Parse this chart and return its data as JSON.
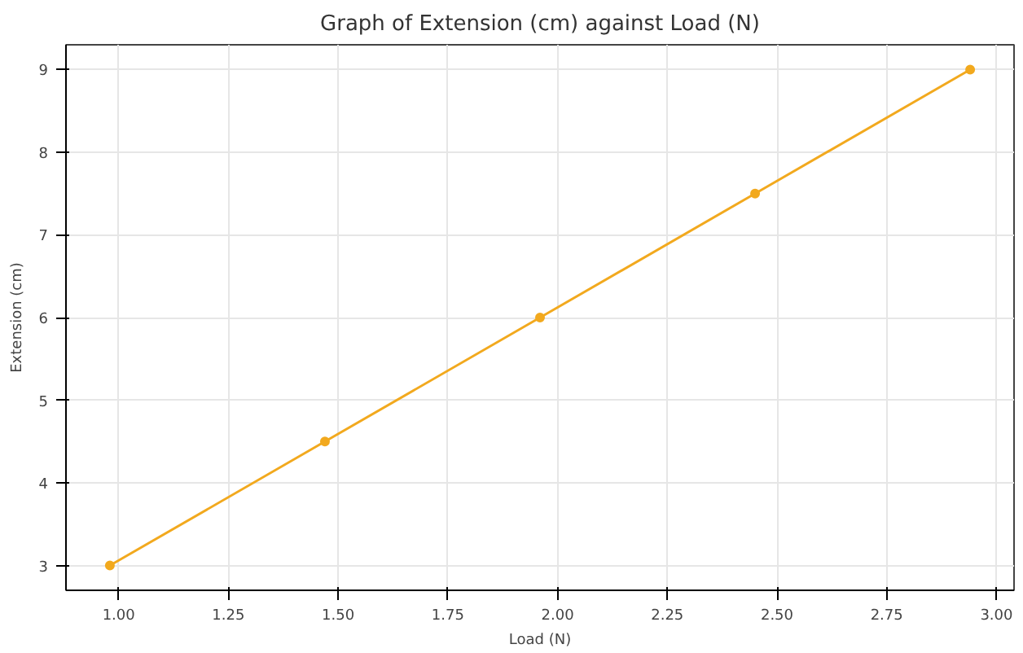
{
  "chart_data": {
    "type": "line",
    "title": "Graph of Extension (cm) against Load (N)",
    "xlabel": "Load (N)",
    "ylabel": "Extension (cm)",
    "x": [
      0.98,
      1.47,
      1.96,
      2.45,
      2.94
    ],
    "series": [
      {
        "color": "#f2a91e",
        "values": [
          3,
          4.5,
          6,
          7.5,
          9
        ]
      }
    ],
    "xlim": [
      0.88,
      3.04
    ],
    "ylim": [
      2.7,
      9.3
    ],
    "xticks": [
      {
        "value": 1,
        "label": "1.00"
      },
      {
        "value": 1.25,
        "label": "1.25"
      },
      {
        "value": 1.5,
        "label": "1.50"
      },
      {
        "value": 1.75,
        "label": "1.75"
      },
      {
        "value": 2,
        "label": "2.00"
      },
      {
        "value": 2.25,
        "label": "2.25"
      },
      {
        "value": 2.5,
        "label": "2.50"
      },
      {
        "value": 2.75,
        "label": "2.75"
      },
      {
        "value": 3,
        "label": "3.00"
      }
    ],
    "yticks": [
      3,
      4,
      5,
      6,
      7,
      8,
      9
    ],
    "grid": true,
    "marker": "circle",
    "line_style": "solid"
  }
}
